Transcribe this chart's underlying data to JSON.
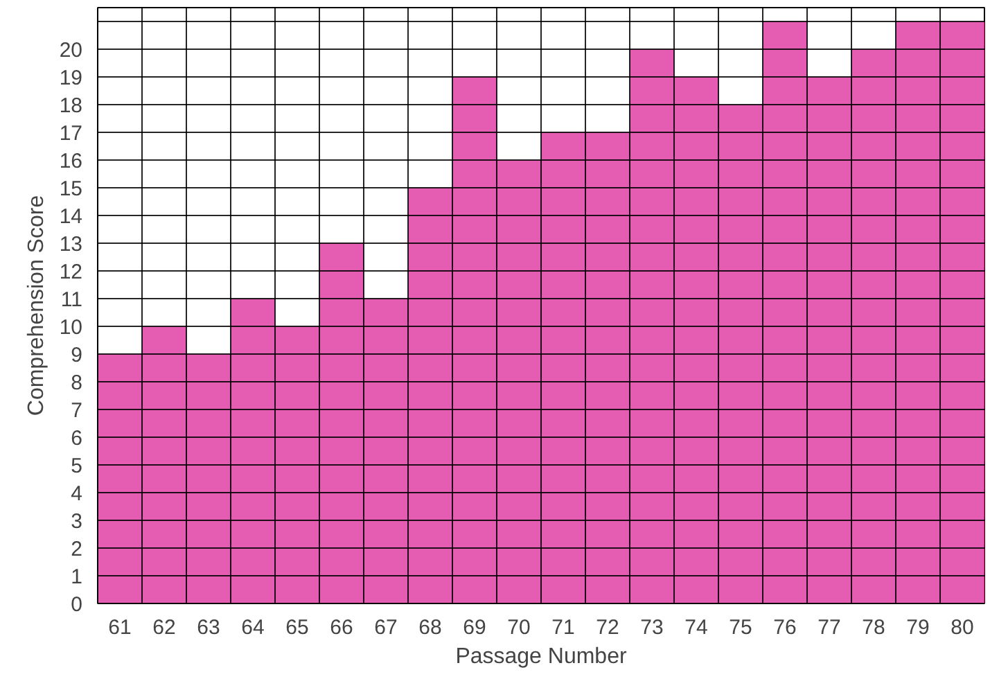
{
  "chart_data": {
    "type": "bar",
    "xlabel": "Passage Number",
    "ylabel": "Comprehension Score",
    "categories": [
      "61",
      "62",
      "63",
      "64",
      "65",
      "66",
      "67",
      "68",
      "69",
      "70",
      "71",
      "72",
      "73",
      "74",
      "75",
      "76",
      "77",
      "78",
      "79",
      "80"
    ],
    "values": [
      9,
      10,
      9,
      11,
      10,
      13,
      11,
      15,
      19,
      16,
      17,
      17,
      20,
      19,
      18,
      21,
      19,
      20,
      21,
      21
    ],
    "color": "#e03fa6",
    "ylim": [
      0,
      21.5
    ],
    "yticks": [
      0,
      1,
      2,
      3,
      4,
      5,
      6,
      7,
      8,
      9,
      10,
      11,
      12,
      13,
      14,
      15,
      16,
      17,
      18,
      19,
      20
    ],
    "grid": true
  }
}
